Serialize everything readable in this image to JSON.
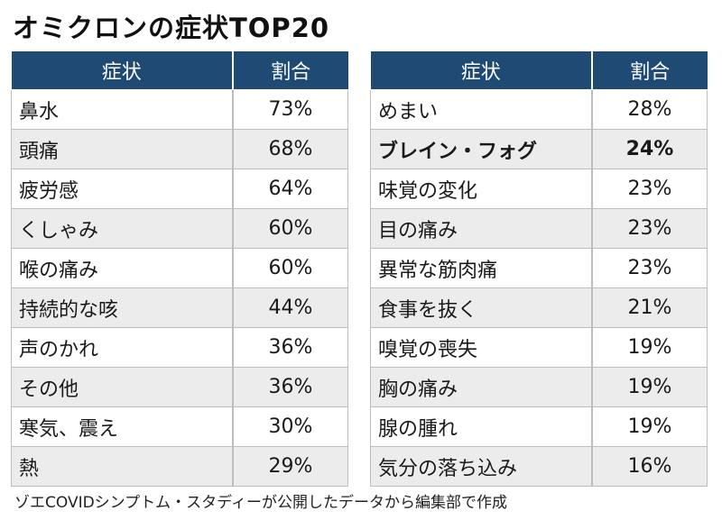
{
  "title": "オミクロンの症状TOP20",
  "headers": {
    "symptom": "症状",
    "ratio": "割合"
  },
  "left_rows": [
    {
      "symptom": "鼻水",
      "ratio": "73%"
    },
    {
      "symptom": "頭痛",
      "ratio": "68%"
    },
    {
      "symptom": "疲労感",
      "ratio": "64%"
    },
    {
      "symptom": "くしゃみ",
      "ratio": "60%"
    },
    {
      "symptom": "喉の痛み",
      "ratio": "60%"
    },
    {
      "symptom": "持続的な咳",
      "ratio": "44%"
    },
    {
      "symptom": "声のかれ",
      "ratio": "36%"
    },
    {
      "symptom": "その他",
      "ratio": "36%"
    },
    {
      "symptom": "寒気、震え",
      "ratio": "30%"
    },
    {
      "symptom": "熱",
      "ratio": "29%"
    }
  ],
  "right_rows": [
    {
      "symptom": "めまい",
      "ratio": "28%"
    },
    {
      "symptom": "ブレイン・フォグ",
      "ratio": "24%",
      "emphasis": true
    },
    {
      "symptom": "味覚の変化",
      "ratio": "23%"
    },
    {
      "symptom": "目の痛み",
      "ratio": "23%"
    },
    {
      "symptom": "異常な筋肉痛",
      "ratio": "23%"
    },
    {
      "symptom": "食事を抜く",
      "ratio": "21%"
    },
    {
      "symptom": "嗅覚の喪失",
      "ratio": "19%"
    },
    {
      "symptom": "胸の痛み",
      "ratio": "19%"
    },
    {
      "symptom": "腺の腫れ",
      "ratio": "19%"
    },
    {
      "symptom": "気分の落ち込み",
      "ratio": "16%"
    }
  ],
  "footnote": "ゾエCOVIDシンプトム・スタディーが公開したデータから編集部で作成",
  "colors": {
    "header_bg": "#1f4a73",
    "stripe": "#ececec"
  }
}
